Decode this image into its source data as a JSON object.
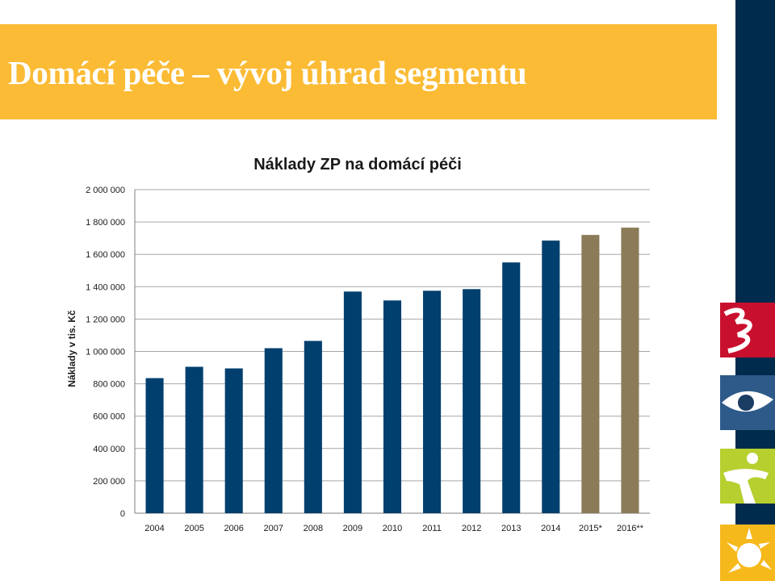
{
  "slide": {
    "title": "Domácí péče – vývoj úhrad segmentu"
  },
  "colors": {
    "accent_band": "#fbbb35",
    "side_bar": "#002b4c",
    "actual_bar": "#003f6e",
    "forecast_bar": "#8b7b58"
  },
  "icons": [
    "red-swirl-icon",
    "eye-icon",
    "green-figure-icon",
    "sun-icon"
  ],
  "chart_data": {
    "type": "bar",
    "title": "Náklady ZP na domácí péči",
    "ylabel": "Náklady v tis. Kč",
    "xlabel": "",
    "ylim": [
      0,
      2000000
    ],
    "yticks": [
      0,
      200000,
      400000,
      600000,
      800000,
      1000000,
      1200000,
      1400000,
      1600000,
      1800000,
      2000000
    ],
    "ytick_labels": [
      "0",
      "200 000",
      "400 000",
      "600 000",
      "800 000",
      "1 000 000",
      "1 200 000",
      "1 400 000",
      "1 600 000",
      "1 800 000",
      "2 000 000"
    ],
    "grid": true,
    "categories": [
      "2004",
      "2005",
      "2006",
      "2007",
      "2008",
      "2009",
      "2010",
      "2011",
      "2012",
      "2013",
      "2014",
      "2015*",
      "2016**"
    ],
    "values": [
      835000,
      905000,
      895000,
      1020000,
      1065000,
      1370000,
      1315000,
      1375000,
      1385000,
      1550000,
      1685000,
      1720000,
      1765000
    ],
    "forecast": [
      false,
      false,
      false,
      false,
      false,
      false,
      false,
      false,
      false,
      false,
      false,
      true,
      true
    ]
  }
}
